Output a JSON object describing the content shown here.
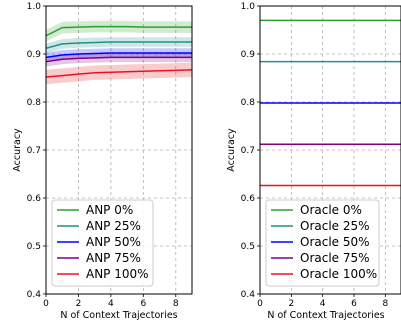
{
  "chart_data": [
    {
      "type": "line",
      "xlabel": "N of Context Trajectories",
      "ylabel": "Accuracy",
      "xlim": [
        0,
        9
      ],
      "ylim": [
        0.4,
        1.0
      ],
      "xticks": [
        "0",
        "2",
        "4",
        "6",
        "8"
      ],
      "yticks": [
        "0.4",
        "0.5",
        "0.6",
        "0.7",
        "0.8",
        "0.9",
        "1.0"
      ],
      "grid": true,
      "legend_position": "lower-left",
      "x": [
        0,
        1,
        2,
        3,
        4,
        5,
        6,
        7,
        8,
        9
      ],
      "series": [
        {
          "name": "ANP 0%",
          "color": "#2ca02c",
          "values": [
            0.938,
            0.955,
            0.956,
            0.957,
            0.957,
            0.957,
            0.956,
            0.956,
            0.956,
            0.956
          ],
          "band": 0.012
        },
        {
          "name": "ANP 25%",
          "color": "#20908c",
          "values": [
            0.912,
            0.921,
            0.923,
            0.924,
            0.925,
            0.925,
            0.925,
            0.925,
            0.925,
            0.925
          ],
          "band": 0.01
        },
        {
          "name": "ANP 50%",
          "color": "#0000ff",
          "values": [
            0.893,
            0.898,
            0.9,
            0.901,
            0.902,
            0.902,
            0.902,
            0.902,
            0.902,
            0.902
          ],
          "band": 0.01
        },
        {
          "name": "ANP 75%",
          "color": "#800080",
          "values": [
            0.884,
            0.889,
            0.891,
            0.892,
            0.893,
            0.893,
            0.893,
            0.893,
            0.893,
            0.893
          ],
          "band": 0.01
        },
        {
          "name": "ANP 100%",
          "color": "#e8141c",
          "values": [
            0.852,
            0.855,
            0.858,
            0.861,
            0.862,
            0.863,
            0.864,
            0.865,
            0.866,
            0.867
          ],
          "band": 0.015
        }
      ]
    },
    {
      "type": "line",
      "xlabel": "N of Context Trajectories",
      "ylabel": "Accuracy",
      "xlim": [
        0,
        9
      ],
      "ylim": [
        0.4,
        1.0
      ],
      "xticks": [
        "0",
        "2",
        "4",
        "6",
        "8"
      ],
      "yticks": [
        "0.4",
        "0.5",
        "0.6",
        "0.7",
        "0.8",
        "0.9",
        "1.0"
      ],
      "grid": true,
      "legend_position": "lower-left",
      "x": [
        0,
        9
      ],
      "series": [
        {
          "name": "Oracle 0%",
          "color": "#2ca02c",
          "values": [
            0.97,
            0.97
          ]
        },
        {
          "name": "Oracle 25%",
          "color": "#20908c",
          "values": [
            0.884,
            0.884
          ]
        },
        {
          "name": "Oracle 50%",
          "color": "#0000ff",
          "values": [
            0.798,
            0.798
          ]
        },
        {
          "name": "Oracle 75%",
          "color": "#800080",
          "values": [
            0.712,
            0.712
          ]
        },
        {
          "name": "Oracle 100%",
          "color": "#e8141c",
          "values": [
            0.626,
            0.626
          ]
        }
      ]
    }
  ]
}
